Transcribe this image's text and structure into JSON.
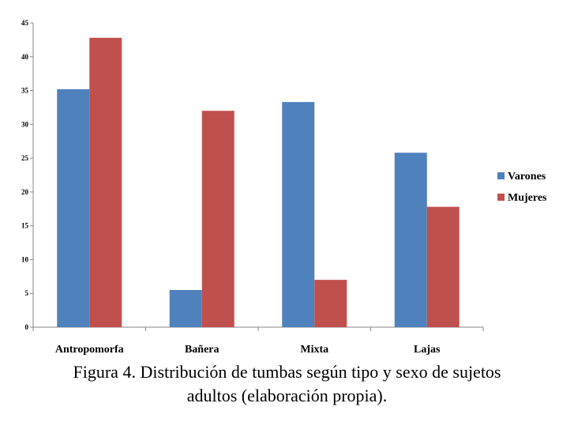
{
  "chart_data": {
    "type": "bar",
    "categories": [
      "Antropomorfa",
      "Bañera",
      "Mixta",
      "Lajas"
    ],
    "series": [
      {
        "name": "Varones",
        "color": "#4f81bd",
        "values": [
          35.2,
          5.5,
          33.3,
          25.8
        ]
      },
      {
        "name": "Mujeres",
        "color": "#c0504d",
        "values": [
          42.8,
          32.0,
          7.0,
          17.8
        ]
      }
    ],
    "ylim": [
      0,
      45
    ],
    "yticks": [
      "0",
      "5",
      "10",
      "15",
      "20",
      "25",
      "30",
      "35",
      "40",
      "45"
    ],
    "legend_position": "right",
    "grid": false
  },
  "caption": {
    "line1": "Figura 4. Distribución de tumbas según tipo y sexo de sujetos",
    "line2": "adultos (elaboración propia)."
  }
}
